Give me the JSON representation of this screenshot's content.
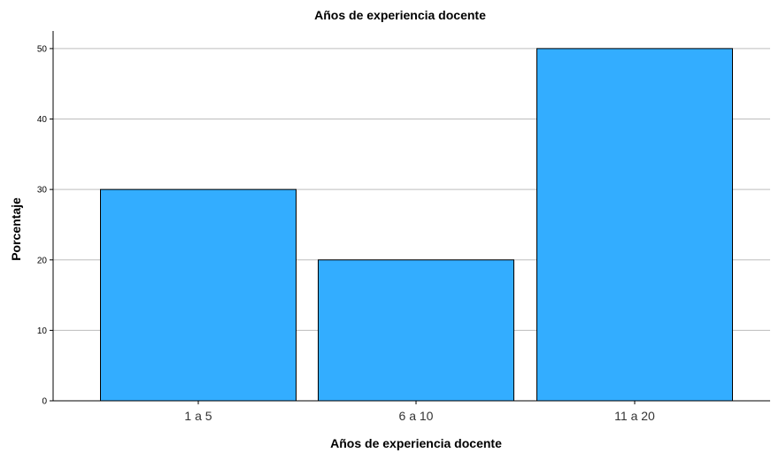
{
  "chart_data": {
    "type": "bar",
    "title": "Años de experiencia docente",
    "xlabel": "Años de experiencia docente",
    "ylabel": "Porcentaje",
    "categories": [
      "1 a 5",
      "6 a 10",
      "11 a 20"
    ],
    "values": [
      30,
      20,
      50
    ],
    "ylim": [
      0,
      52.5
    ],
    "yticks": [
      0,
      10,
      20,
      30,
      40,
      50
    ],
    "grid": true,
    "bar_color": "#33adff",
    "bar_edge_color": "#000000",
    "gridline_color": "#bdbdbd"
  }
}
